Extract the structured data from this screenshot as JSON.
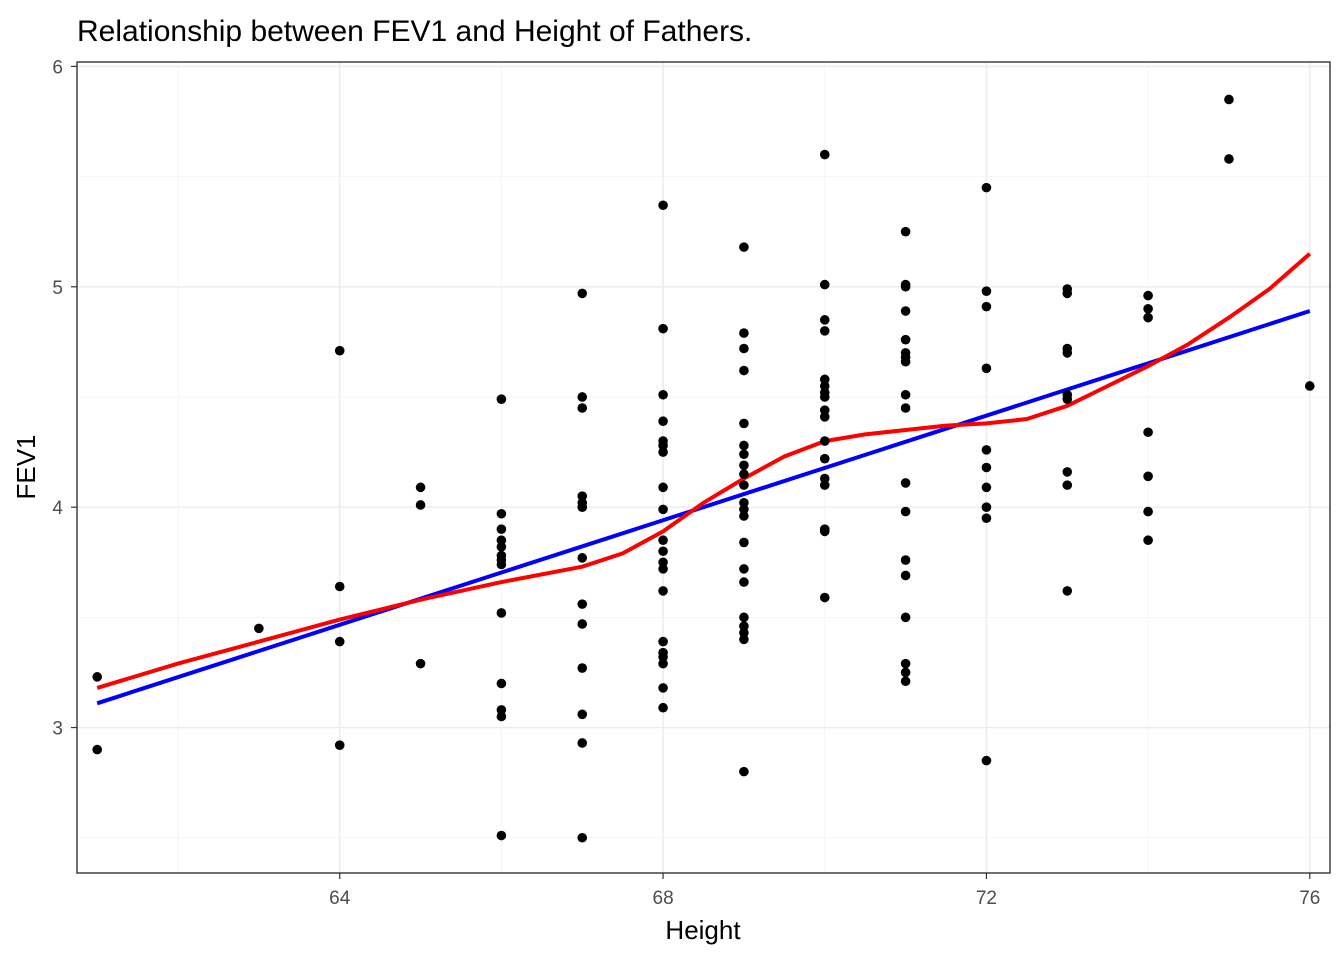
{
  "chart_data": {
    "type": "scatter",
    "title": "Relationship between FEV1 and Height of Fathers.",
    "xlabel": "Height",
    "ylabel": "FEV1",
    "xlim": [
      60.75,
      76.25
    ],
    "ylim": [
      2.34,
      6.02
    ],
    "x_ticks": [
      64,
      68,
      72,
      76
    ],
    "x_tick_labels": [
      "64",
      "68",
      "72",
      "76"
    ],
    "y_ticks": [
      3,
      4,
      5,
      6
    ],
    "y_tick_labels": [
      "3",
      "4",
      "5",
      "6"
    ],
    "grid": true,
    "points": [
      [
        61,
        3.23
      ],
      [
        61,
        2.9
      ],
      [
        63,
        3.45
      ],
      [
        64,
        4.71
      ],
      [
        64,
        3.64
      ],
      [
        64,
        3.39
      ],
      [
        64,
        2.92
      ],
      [
        65,
        4.09
      ],
      [
        65,
        4.01
      ],
      [
        65,
        3.29
      ],
      [
        66,
        4.49
      ],
      [
        66,
        3.97
      ],
      [
        66,
        3.9
      ],
      [
        66,
        3.85
      ],
      [
        66,
        3.82
      ],
      [
        66,
        3.78
      ],
      [
        66,
        3.76
      ],
      [
        66,
        3.74
      ],
      [
        66,
        3.52
      ],
      [
        66,
        3.2
      ],
      [
        66,
        3.08
      ],
      [
        66,
        3.05
      ],
      [
        66,
        2.51
      ],
      [
        67,
        4.97
      ],
      [
        67,
        4.5
      ],
      [
        67,
        4.45
      ],
      [
        67,
        4.05
      ],
      [
        67,
        4.02
      ],
      [
        67,
        4.0
      ],
      [
        67,
        3.77
      ],
      [
        67,
        3.56
      ],
      [
        67,
        3.47
      ],
      [
        67,
        3.27
      ],
      [
        67,
        3.06
      ],
      [
        67,
        2.93
      ],
      [
        67,
        2.5
      ],
      [
        68,
        5.37
      ],
      [
        68,
        4.81
      ],
      [
        68,
        4.51
      ],
      [
        68,
        4.39
      ],
      [
        68,
        4.3
      ],
      [
        68,
        4.28
      ],
      [
        68,
        4.25
      ],
      [
        68,
        4.09
      ],
      [
        68,
        3.99
      ],
      [
        68,
        3.85
      ],
      [
        68,
        3.8
      ],
      [
        68,
        3.75
      ],
      [
        68,
        3.72
      ],
      [
        68,
        3.62
      ],
      [
        68,
        3.39
      ],
      [
        68,
        3.34
      ],
      [
        68,
        3.32
      ],
      [
        68,
        3.29
      ],
      [
        68,
        3.18
      ],
      [
        68,
        3.09
      ],
      [
        69,
        5.18
      ],
      [
        69,
        4.79
      ],
      [
        69,
        4.72
      ],
      [
        69,
        4.62
      ],
      [
        69,
        4.38
      ],
      [
        69,
        4.28
      ],
      [
        69,
        4.24
      ],
      [
        69,
        4.19
      ],
      [
        69,
        4.15
      ],
      [
        69,
        4.1
      ],
      [
        69,
        4.02
      ],
      [
        69,
        3.99
      ],
      [
        69,
        3.96
      ],
      [
        69,
        3.84
      ],
      [
        69,
        3.72
      ],
      [
        69,
        3.66
      ],
      [
        69,
        3.5
      ],
      [
        69,
        3.46
      ],
      [
        69,
        3.43
      ],
      [
        69,
        3.4
      ],
      [
        69,
        2.8
      ],
      [
        70,
        5.6
      ],
      [
        70,
        5.01
      ],
      [
        70,
        4.85
      ],
      [
        70,
        4.8
      ],
      [
        70,
        4.58
      ],
      [
        70,
        4.55
      ],
      [
        70,
        4.52
      ],
      [
        70,
        4.5
      ],
      [
        70,
        4.44
      ],
      [
        70,
        4.41
      ],
      [
        70,
        4.3
      ],
      [
        70,
        4.22
      ],
      [
        70,
        4.13
      ],
      [
        70,
        4.1
      ],
      [
        70,
        3.9
      ],
      [
        70,
        3.89
      ],
      [
        70,
        3.59
      ],
      [
        71,
        5.25
      ],
      [
        71,
        5.01
      ],
      [
        71,
        5.0
      ],
      [
        71,
        4.89
      ],
      [
        71,
        4.76
      ],
      [
        71,
        4.7
      ],
      [
        71,
        4.68
      ],
      [
        71,
        4.66
      ],
      [
        71,
        4.51
      ],
      [
        71,
        4.45
      ],
      [
        71,
        4.11
      ],
      [
        71,
        3.98
      ],
      [
        71,
        3.76
      ],
      [
        71,
        3.69
      ],
      [
        71,
        3.5
      ],
      [
        71,
        3.29
      ],
      [
        71,
        3.25
      ],
      [
        71,
        3.21
      ],
      [
        72,
        5.45
      ],
      [
        72,
        4.98
      ],
      [
        72,
        4.91
      ],
      [
        72,
        4.63
      ],
      [
        72,
        4.26
      ],
      [
        72,
        4.18
      ],
      [
        72,
        4.09
      ],
      [
        72,
        4.0
      ],
      [
        72,
        3.95
      ],
      [
        72,
        2.85
      ],
      [
        73,
        4.99
      ],
      [
        73,
        4.97
      ],
      [
        73,
        4.72
      ],
      [
        73,
        4.7
      ],
      [
        73,
        4.51
      ],
      [
        73,
        4.49
      ],
      [
        73,
        4.16
      ],
      [
        73,
        4.1
      ],
      [
        73,
        3.62
      ],
      [
        74,
        4.96
      ],
      [
        74,
        4.9
      ],
      [
        74,
        4.86
      ],
      [
        74,
        4.34
      ],
      [
        74,
        4.14
      ],
      [
        74,
        3.98
      ],
      [
        74,
        3.85
      ],
      [
        75,
        5.85
      ],
      [
        75,
        5.58
      ],
      [
        76,
        4.55
      ]
    ],
    "series": [
      {
        "name": "",
        "color": "#0000ff",
        "kind": "linear-fit",
        "x": [
          61,
          76
        ],
        "y": [
          3.11,
          4.89
        ]
      },
      {
        "name": "",
        "color": "#ff0000",
        "kind": "smooth",
        "x": [
          61,
          62,
          63,
          64,
          65,
          66,
          67,
          67.5,
          68,
          68.5,
          69,
          69.5,
          70,
          70.5,
          71,
          71.5,
          72,
          72.5,
          73,
          73.5,
          74,
          74.5,
          75,
          75.5,
          76
        ],
        "y": [
          3.18,
          3.29,
          3.39,
          3.49,
          3.58,
          3.66,
          3.73,
          3.79,
          3.89,
          4.02,
          4.13,
          4.23,
          4.3,
          4.33,
          4.35,
          4.37,
          4.38,
          4.4,
          4.46,
          4.55,
          4.64,
          4.74,
          4.86,
          4.99,
          5.15
        ]
      }
    ]
  }
}
